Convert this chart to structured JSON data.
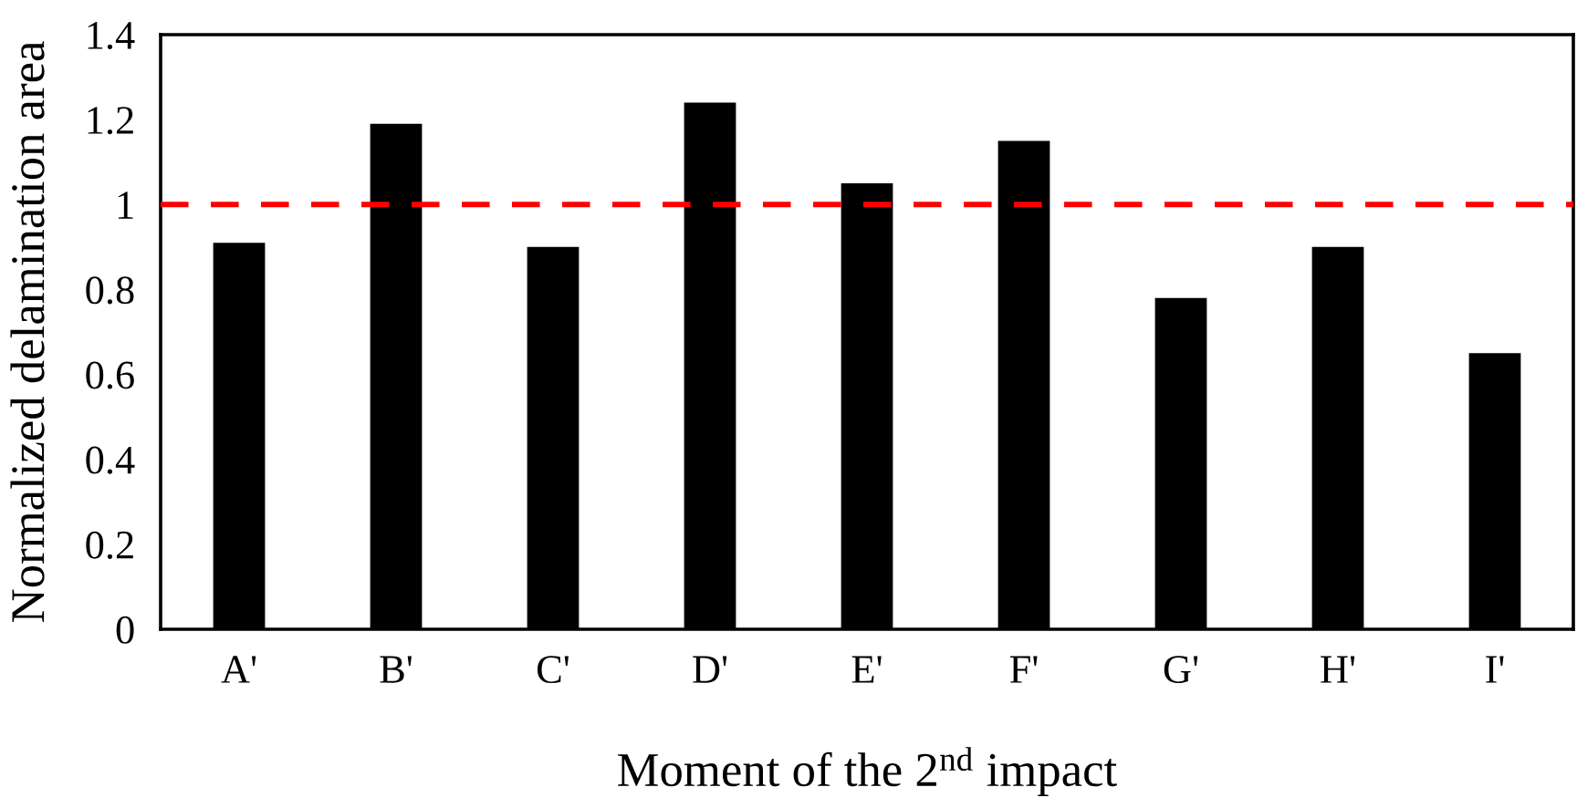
{
  "chart_data": {
    "type": "bar",
    "xlabel": "Moment of the 2$^{nd}$ impact",
    "ylabel": "Normalized delamination area",
    "categories": [
      "A'",
      "B'",
      "C'",
      "D'",
      "E'",
      "F'",
      "G'",
      "H'",
      "I'"
    ],
    "values": [
      0.91,
      1.19,
      0.9,
      1.24,
      1.05,
      1.15,
      0.78,
      0.9,
      0.65
    ],
    "color": "#000000",
    "ylim": [
      0,
      1.4
    ],
    "yticks": [
      0,
      0.2,
      0.4,
      0.6,
      0.8,
      1,
      1.2,
      1.4
    ],
    "ref_lines": [
      {
        "axis": "y",
        "value": 1,
        "color": "#ff0000",
        "line_style": "dashed"
      }
    ],
    "grid": false
  }
}
